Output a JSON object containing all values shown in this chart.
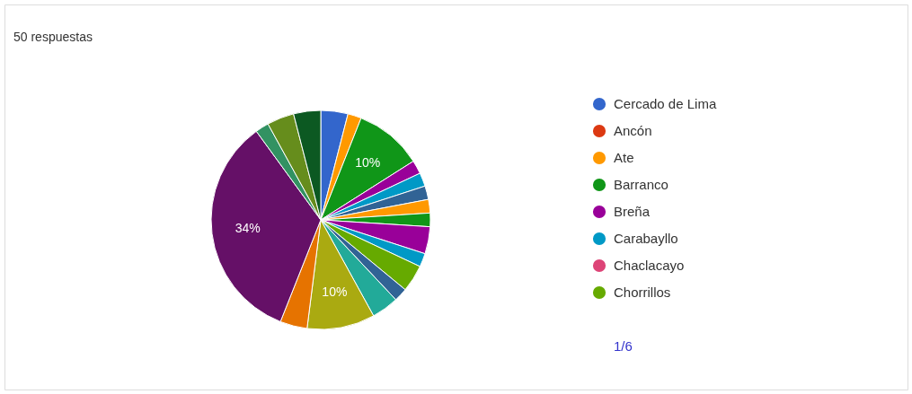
{
  "chart_data": {
    "type": "pie",
    "title": "50 respuestas",
    "categories": [
      "Cercado de Lima",
      "Ancón",
      "Ate",
      "Barranco",
      "Breña",
      "Carabayllo",
      "Chaclacayo",
      "Chorrillos",
      null,
      null,
      null,
      null,
      null,
      null,
      null,
      null,
      null,
      null,
      null,
      null,
      null,
      null
    ],
    "values": [
      4,
      0,
      2,
      10,
      2,
      2,
      0,
      0,
      2,
      2,
      2,
      4,
      2,
      4,
      2,
      4,
      10,
      4,
      34,
      2,
      4,
      4
    ],
    "colors": [
      "#3366cc",
      "#dc3912",
      "#ff9900",
      "#109618",
      "#990099",
      "#0099c6",
      "#dd4477",
      "#66aa00",
      "#316395",
      "#ff9900",
      "#109618",
      "#990099",
      "#0099c6",
      "#66aa00",
      "#316395",
      "#22aa99",
      "#aaaa11",
      "#e67300",
      "#651067",
      "#329262",
      "#668d1c",
      "#0c5922"
    ],
    "value_labels": [
      null,
      null,
      null,
      "10%",
      null,
      null,
      null,
      null,
      null,
      null,
      null,
      null,
      null,
      null,
      null,
      null,
      "10%",
      null,
      "34%",
      null,
      null,
      null
    ],
    "legend": "right",
    "annotations": [
      "1/6"
    ]
  }
}
